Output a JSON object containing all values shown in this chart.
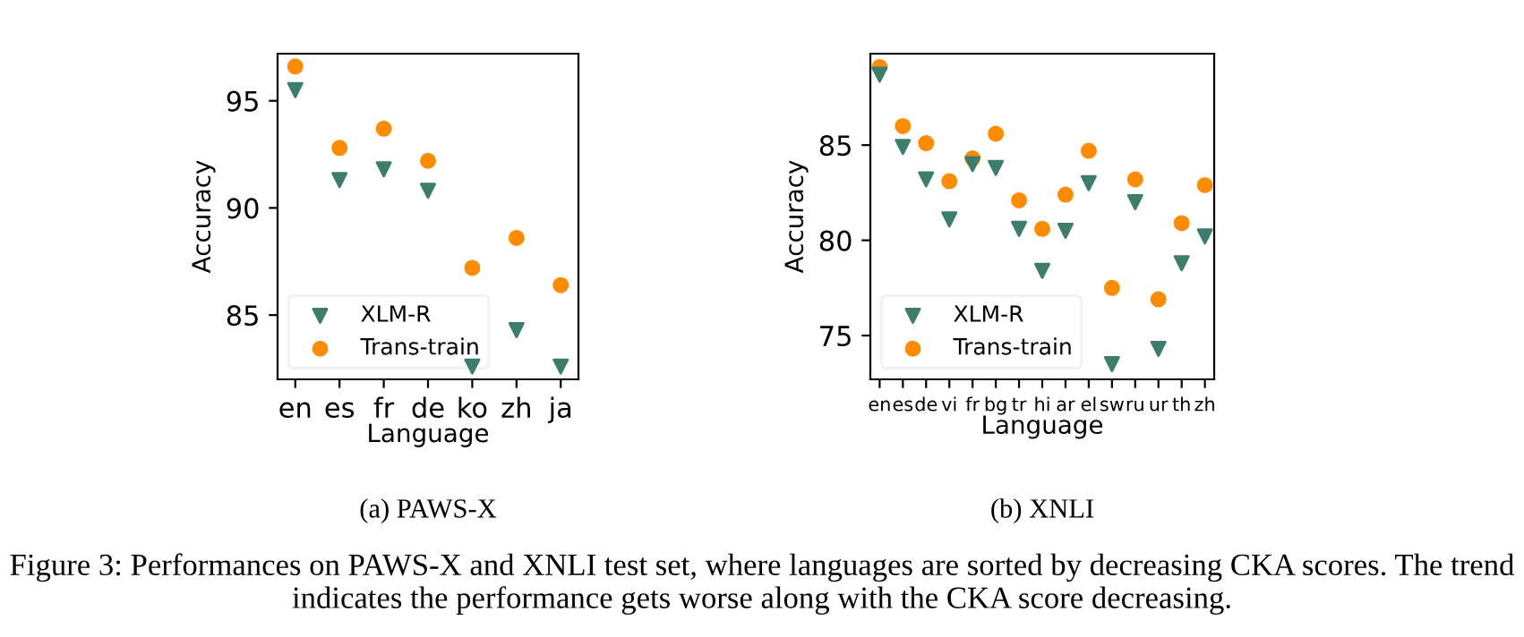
{
  "chart_data": [
    {
      "type": "scatter",
      "title": "(a) PAWS-X",
      "xlabel": "Language",
      "ylabel": "Accuracy",
      "categories": [
        "en",
        "es",
        "fr",
        "de",
        "ko",
        "zh",
        "ja"
      ],
      "series": [
        {
          "name": "XLM-R",
          "color": "#3d7d6c",
          "marker": "triangle",
          "values": [
            95.5,
            91.3,
            91.8,
            90.8,
            82.6,
            84.3,
            82.6
          ]
        },
        {
          "name": "Trans-train",
          "color": "#ff8c00",
          "marker": "circle",
          "values": [
            96.6,
            92.8,
            93.7,
            92.2,
            87.2,
            88.6,
            86.4
          ]
        }
      ],
      "ylim": [
        82.0,
        97.2
      ],
      "yticks": [
        85,
        90,
        95
      ],
      "grid": false,
      "legend": "bottom left",
      "annotations": [
        "Figure 3: Performances on PAWS-X and XNLI test set, where languages are sorted by decreasing CKA scores. The trend indicates the performance gets worse along with the CKA score decreasing."
      ]
    },
    {
      "type": "scatter",
      "title": "(b) XNLI",
      "xlabel": "Language",
      "ylabel": "Accuracy",
      "categories": [
        "en",
        "es",
        "de",
        "vi",
        "fr",
        "bg",
        "tr",
        "hi",
        "ar",
        "el",
        "sw",
        "ru",
        "ur",
        "th",
        "zh"
      ],
      "series": [
        {
          "name": "XLM-R",
          "color": "#3d7d6c",
          "marker": "triangle",
          "values": [
            88.7,
            84.9,
            83.2,
            81.1,
            84.0,
            83.8,
            80.6,
            78.4,
            80.5,
            83.0,
            73.5,
            82.0,
            74.3,
            78.8,
            80.2
          ]
        },
        {
          "name": "Trans-train",
          "color": "#ff8c00",
          "marker": "circle",
          "values": [
            89.1,
            86.0,
            85.1,
            83.1,
            84.3,
            85.6,
            82.1,
            80.6,
            82.4,
            84.7,
            77.5,
            83.2,
            76.9,
            80.9,
            82.9
          ]
        }
      ],
      "ylim": [
        72.7,
        89.8
      ],
      "yticks": [
        75,
        80,
        85
      ],
      "grid": false,
      "legend": "bottom left"
    }
  ]
}
